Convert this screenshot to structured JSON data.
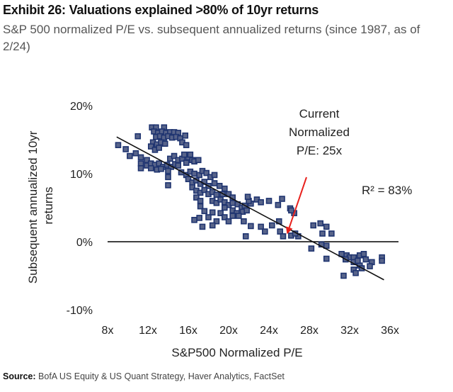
{
  "title": "Exhibit 26: Valuations explained >80% of 10yr returns",
  "subtitle": "S&P 500 normalized P/E vs. subsequent annualized returns (since 1987, as of 2/24)",
  "source_label": "Source:",
  "source_text": "BofA US Equity & US Quant Strategy, Haver Analytics, FactSet",
  "chart_data": {
    "type": "scatter",
    "xlabel": "S&P500 Normalized P/E",
    "ylabel": "Subsequent annualized 10yr returns",
    "xlim": [
      8,
      36
    ],
    "ylim": [
      -10,
      20
    ],
    "x_ticks": [
      "8x",
      "12x",
      "16x",
      "20x",
      "24x",
      "28x",
      "32x",
      "36x"
    ],
    "x_tick_values": [
      8,
      12,
      16,
      20,
      24,
      28,
      32,
      36
    ],
    "y_ticks": [
      "20%",
      "10%",
      "0%",
      "-10%"
    ],
    "y_tick_values": [
      20,
      10,
      0,
      -10
    ],
    "grid": false,
    "zero_line": true,
    "marker_color": "#1f3470",
    "trendline": {
      "x": [
        8.9,
        35.4
      ],
      "y": [
        15.4,
        -5.6
      ]
    },
    "annotation": {
      "lines": [
        "Current",
        "Normalized",
        "P/E: 25x"
      ],
      "arrow_color": "#e8201c",
      "points_to": [
        25.9,
        1.6
      ]
    },
    "r_squared_label": "R² = 83%",
    "points": [
      [
        12.4,
        16.8
      ],
      [
        12.8,
        16.8
      ],
      [
        13.6,
        16.8
      ],
      [
        12.6,
        16.2
      ],
      [
        13.0,
        16.0
      ],
      [
        13.4,
        16.2
      ],
      [
        13.8,
        16.0
      ],
      [
        14.2,
        16.1
      ],
      [
        14.6,
        16.1
      ],
      [
        15.0,
        16.0
      ],
      [
        12.8,
        15.4
      ],
      [
        13.2,
        15.5
      ],
      [
        13.6,
        15.3
      ],
      [
        14.0,
        15.5
      ],
      [
        14.4,
        15.3
      ],
      [
        14.8,
        15.4
      ],
      [
        15.2,
        15.2
      ],
      [
        15.7,
        15.6
      ],
      [
        11.0,
        15.5
      ],
      [
        12.5,
        14.6
      ],
      [
        12.9,
        14.3
      ],
      [
        13.3,
        14.6
      ],
      [
        13.7,
        14.4
      ],
      [
        15.4,
        14.6
      ],
      [
        15.8,
        14.2
      ],
      [
        12.3,
        14.0
      ],
      [
        12.7,
        13.5
      ],
      [
        13.1,
        13.8
      ],
      [
        9.05,
        14.2
      ],
      [
        9.8,
        13.6
      ],
      [
        10.2,
        12.6
      ],
      [
        10.8,
        13.0
      ],
      [
        11.3,
        12.4
      ],
      [
        11.3,
        11.5
      ],
      [
        11.3,
        10.8
      ],
      [
        11.9,
        12.0
      ],
      [
        11.9,
        11.2
      ],
      [
        12.3,
        11.5
      ],
      [
        12.7,
        11.3
      ],
      [
        13.1,
        11.5
      ],
      [
        13.5,
        11.0
      ],
      [
        13.9,
        11.3
      ],
      [
        14.3,
        11.0
      ],
      [
        14.7,
        11.4
      ],
      [
        15.0,
        11.2
      ],
      [
        12.3,
        10.8
      ],
      [
        12.9,
        10.6
      ],
      [
        13.3,
        10.7
      ],
      [
        14.0,
        10.4
      ],
      [
        14.2,
        12.2
      ],
      [
        14.6,
        12.6
      ],
      [
        15.0,
        12.0
      ],
      [
        15.4,
        12.2
      ],
      [
        15.8,
        11.6
      ],
      [
        16.0,
        12.4
      ],
      [
        16.4,
        12.0
      ],
      [
        15.6,
        12.8
      ],
      [
        16.2,
        12.8
      ],
      [
        16.6,
        11.8
      ],
      [
        17.0,
        12.0
      ],
      [
        14.0,
        9.5
      ],
      [
        14.0,
        8.3
      ],
      [
        15.3,
        10.2
      ],
      [
        15.8,
        9.8
      ],
      [
        16.2,
        10.3
      ],
      [
        16.6,
        10.0
      ],
      [
        17.1,
        9.8
      ],
      [
        17.4,
        10.4
      ],
      [
        17.8,
        10.1
      ],
      [
        18.2,
        9.5
      ],
      [
        18.6,
        9.8
      ],
      [
        16.0,
        9.2
      ],
      [
        16.4,
        8.7
      ],
      [
        16.8,
        9.0
      ],
      [
        17.2,
        8.5
      ],
      [
        17.6,
        8.8
      ],
      [
        18.0,
        8.2
      ],
      [
        18.6,
        8.6
      ],
      [
        19.1,
        8.2
      ],
      [
        19.6,
        7.8
      ],
      [
        16.4,
        8.0
      ],
      [
        16.8,
        7.5
      ],
      [
        17.2,
        7.2
      ],
      [
        17.6,
        7.6
      ],
      [
        18.0,
        7.0
      ],
      [
        18.4,
        7.3
      ],
      [
        18.8,
        6.9
      ],
      [
        19.4,
        7.0
      ],
      [
        20.0,
        7.0
      ],
      [
        20.4,
        6.5
      ],
      [
        16.8,
        6.5
      ],
      [
        17.2,
        6.0
      ],
      [
        18.4,
        6.0
      ],
      [
        18.8,
        5.7
      ],
      [
        19.2,
        6.2
      ],
      [
        19.6,
        5.8
      ],
      [
        20.0,
        5.4
      ],
      [
        20.4,
        5.7
      ],
      [
        20.9,
        5.5
      ],
      [
        21.3,
        5.0
      ],
      [
        21.6,
        5.3
      ],
      [
        22.2,
        5.6
      ],
      [
        17.2,
        5.2
      ],
      [
        17.6,
        4.5
      ],
      [
        18.4,
        4.3
      ],
      [
        19.2,
        4.2
      ],
      [
        19.6,
        5.0
      ],
      [
        20.4,
        4.6
      ],
      [
        20.8,
        4.2
      ],
      [
        21.4,
        4.4
      ],
      [
        17.1,
        3.5
      ],
      [
        18.0,
        3.6
      ],
      [
        18.8,
        3.0
      ],
      [
        19.6,
        3.6
      ],
      [
        20.4,
        3.8
      ],
      [
        20.0,
        3.0
      ],
      [
        21.0,
        3.8
      ],
      [
        21.8,
        4.6
      ],
      [
        16.6,
        3.2
      ],
      [
        17.4,
        2.2
      ],
      [
        18.4,
        2.4
      ],
      [
        22.0,
        6.0
      ],
      [
        21.9,
        6.6
      ],
      [
        22.8,
        6.2
      ],
      [
        23.2,
        5.8
      ],
      [
        24.0,
        6.0
      ],
      [
        24.9,
        5.4
      ],
      [
        25.3,
        6.3
      ],
      [
        26.1,
        4.9
      ],
      [
        26.5,
        4.2
      ],
      [
        26.2,
        4.6
      ],
      [
        21.5,
        3.0
      ],
      [
        22.2,
        2.3
      ],
      [
        23.2,
        2.2
      ],
      [
        23.6,
        1.5
      ],
      [
        21.7,
        0.8
      ],
      [
        24.3,
        2.4
      ],
      [
        25.0,
        3.0
      ],
      [
        25.1,
        1.5
      ],
      [
        25.4,
        0.8
      ],
      [
        26.2,
        0.9
      ],
      [
        26.9,
        0.8
      ],
      [
        26.6,
        1.2
      ],
      [
        28.4,
        2.4
      ],
      [
        29.1,
        2.7
      ],
      [
        29.7,
        2.2
      ],
      [
        30.2,
        1.2
      ],
      [
        29.3,
        1.2
      ],
      [
        29.2,
        -0.4
      ],
      [
        28.2,
        -1.0
      ],
      [
        29.7,
        -0.6
      ],
      [
        29.7,
        -2.5
      ],
      [
        31.2,
        -1.8
      ],
      [
        31.7,
        -2.0
      ],
      [
        32.0,
        -2.3
      ],
      [
        32.4,
        -2.3
      ],
      [
        33.0,
        -2.0
      ],
      [
        33.4,
        -1.8
      ],
      [
        32.4,
        -3.0
      ],
      [
        33.0,
        -3.5
      ],
      [
        35.2,
        -2.3
      ],
      [
        35.2,
        -2.8
      ],
      [
        31.4,
        -5.0
      ],
      [
        32.4,
        -4.1
      ],
      [
        32.6,
        -4.6
      ],
      [
        33.2,
        -3.9
      ],
      [
        34.2,
        -3.0
      ],
      [
        34.0,
        -3.6
      ],
      [
        33.6,
        -2.6
      ],
      [
        31.6,
        -2.6
      ],
      [
        32.8,
        -2.8
      ]
    ]
  }
}
